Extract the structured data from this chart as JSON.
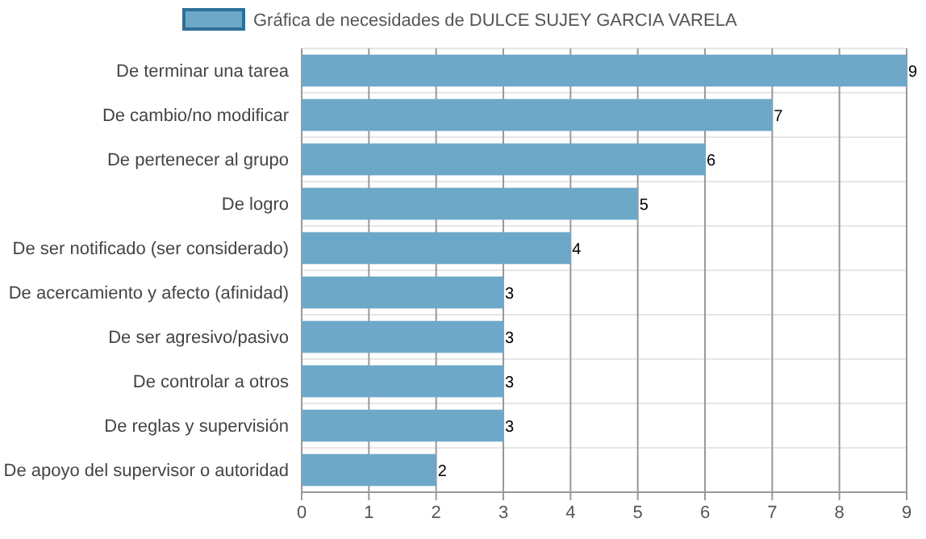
{
  "chart_data": {
    "type": "bar",
    "orientation": "horizontal",
    "categories": [
      "De terminar una tarea",
      "De cambio/no modificar",
      "De pertenecer al grupo",
      "De logro",
      "De ser notificado (ser considerado)",
      "De acercamiento y afecto (afinidad)",
      "De ser agresivo/pasivo",
      "De controlar a otros",
      "De reglas y supervisión",
      "De apoyo del supervisor o autoridad"
    ],
    "series": [
      {
        "name": "Gráfica de necesidades de DULCE SUJEY GARCIA VARELA",
        "color": "#6ea8c8",
        "values": [
          9,
          7,
          6,
          5,
          4,
          3,
          3,
          3,
          3,
          2
        ]
      }
    ],
    "xlim": [
      0,
      9
    ],
    "xticks": [
      0,
      1,
      2,
      3,
      4,
      5,
      6,
      7,
      8,
      9
    ],
    "grid": true,
    "legend": "top",
    "data_labels": true
  }
}
